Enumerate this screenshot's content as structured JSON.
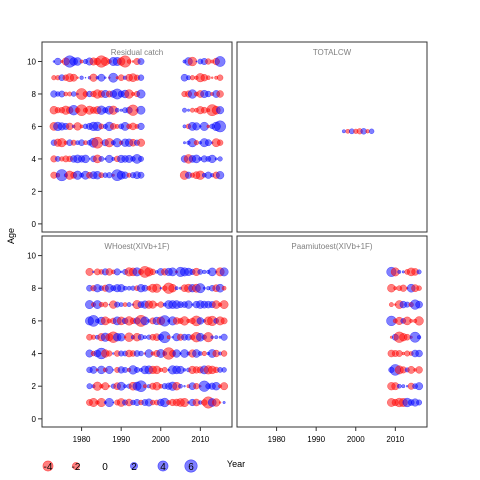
{
  "chart_data": {
    "type": "scatter",
    "xlabel": "Year",
    "ylabel": "Age",
    "xlim": [
      1970,
      2018
    ],
    "ylim": [
      -0.5,
      11.2
    ],
    "x_ticks": [
      "1980",
      "1990",
      "2000",
      "2010"
    ],
    "y_ticks": [
      "0",
      "2",
      "4",
      "6",
      "8",
      "10"
    ],
    "colors": {
      "negative": "#ff0000",
      "positive": "#0000ff"
    },
    "panels": [
      {
        "title": "Residual catch",
        "year_blocks": [
          [
            1973,
            1995
          ],
          [
            2006,
            2015
          ]
        ],
        "ages": [
          3,
          4,
          5,
          6,
          7,
          8,
          9,
          10
        ],
        "seed": 11
      },
      {
        "title": "TOTALCW",
        "points": [
          {
            "x": 1997,
            "y": 5.7,
            "r": 0.4
          },
          {
            "x": 1998,
            "y": 5.7,
            "r": -0.6
          },
          {
            "x": 1999,
            "y": 5.7,
            "r": 1.0
          },
          {
            "x": 2000,
            "y": 5.7,
            "r": -0.8
          },
          {
            "x": 2001,
            "y": 5.7,
            "r": -1.2
          },
          {
            "x": 2002,
            "y": 5.7,
            "r": 1.3
          },
          {
            "x": 2003,
            "y": 5.7,
            "r": -0.5
          },
          {
            "x": 2004,
            "y": 5.7,
            "r": 0.9
          }
        ]
      },
      {
        "title": "WHoest(XIVb+1F)",
        "year_blocks": [
          [
            1982,
            2016
          ]
        ],
        "ages": [
          1,
          2,
          3,
          4,
          5,
          6,
          7,
          8,
          9
        ],
        "seed": 29
      },
      {
        "title": "Paamiutoest(XIVb+1F)",
        "year_blocks": [
          [
            2009,
            2016
          ]
        ],
        "ages": [
          1,
          2,
          3,
          4,
          5,
          6,
          7,
          8,
          9
        ],
        "seed": 53
      }
    ],
    "legend": {
      "values": [
        -4,
        -2,
        0,
        2,
        4,
        6
      ],
      "labels": [
        "-4",
        "-2",
        "0",
        "2",
        "4",
        "6"
      ]
    }
  }
}
